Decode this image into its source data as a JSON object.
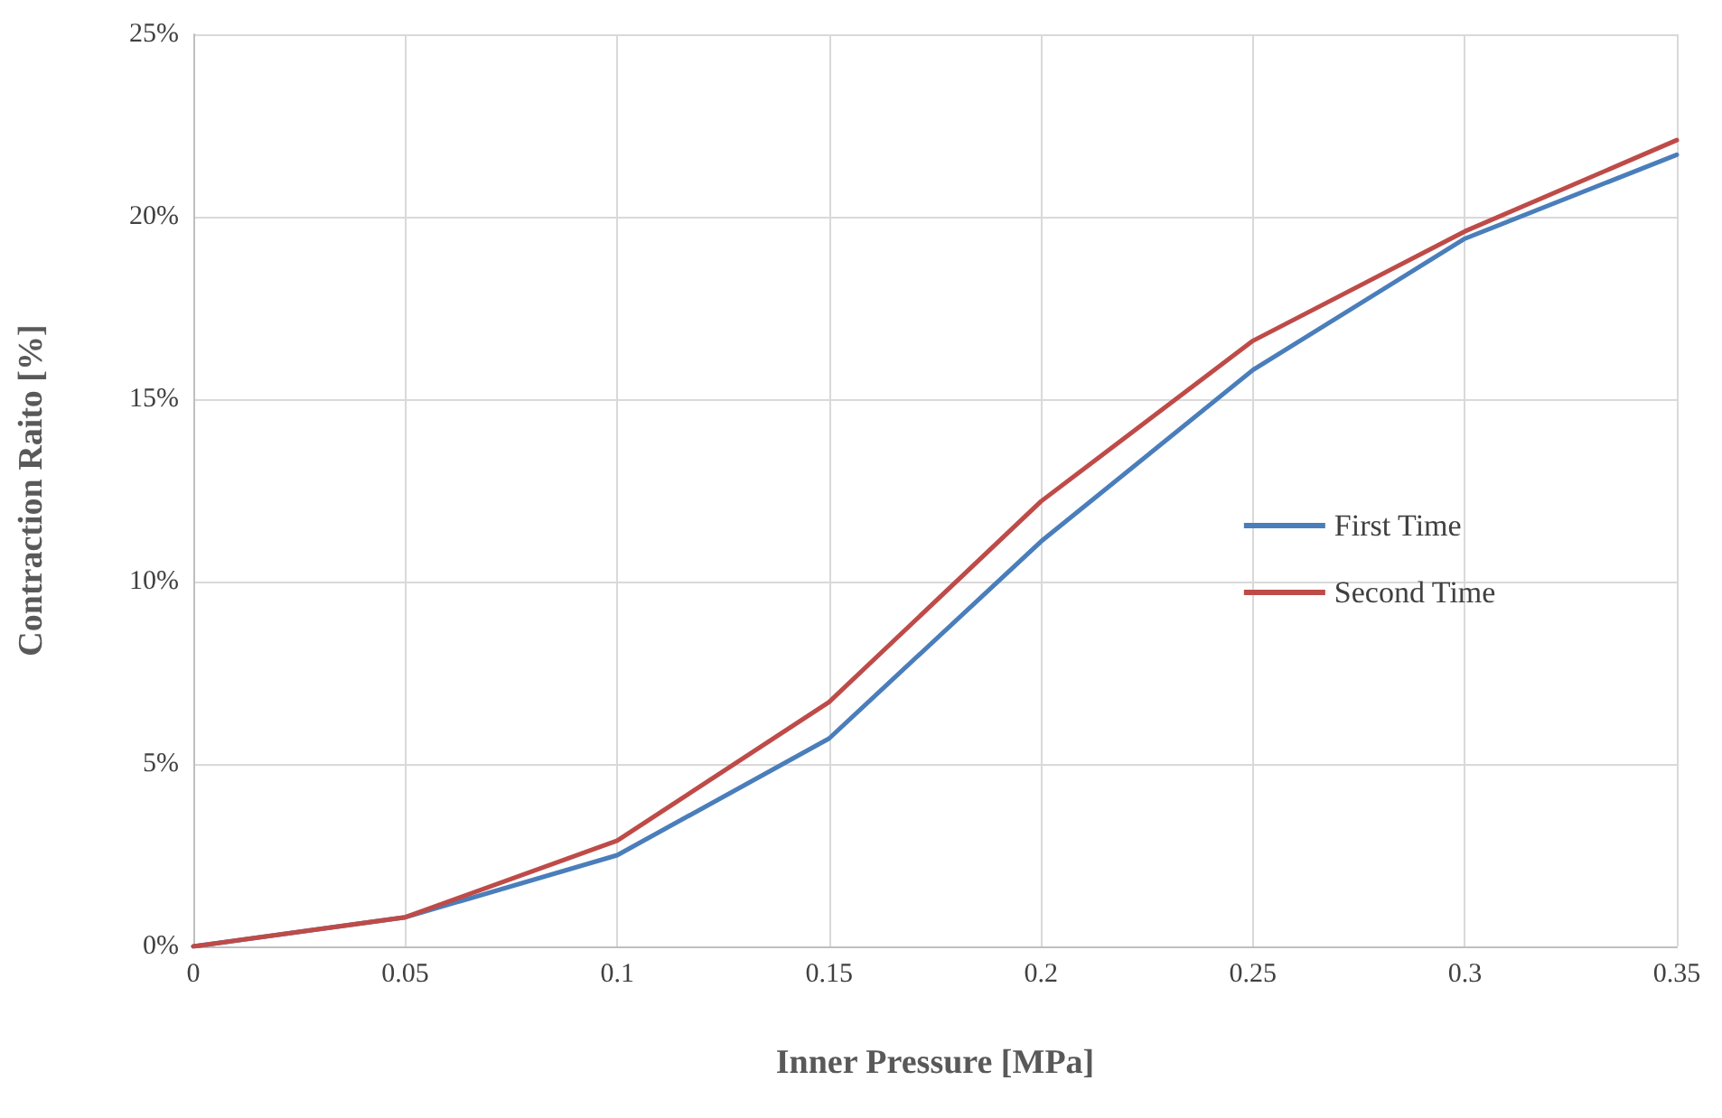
{
  "chart_data": {
    "type": "line",
    "xlabel": "Inner Pressure [MPa]",
    "ylabel": "Contraction Raito [%]",
    "x": [
      0,
      0.05,
      0.1,
      0.15,
      0.2,
      0.25,
      0.3,
      0.35
    ],
    "series": [
      {
        "name": "First Time",
        "color": "#4a7ebb",
        "values": [
          0,
          0.8,
          2.5,
          5.7,
          11.1,
          15.8,
          19.4,
          21.7
        ]
      },
      {
        "name": "Second Time",
        "color": "#be4b48",
        "values": [
          0,
          0.8,
          2.9,
          6.7,
          12.2,
          16.6,
          19.6,
          22.1
        ]
      }
    ],
    "xlim": [
      0,
      0.35
    ],
    "xticks": [
      0,
      0.05,
      0.1,
      0.15,
      0.2,
      0.25,
      0.3,
      0.35
    ],
    "ylim": [
      0,
      25
    ],
    "yticks": [
      {
        "value": 0,
        "label": "0%"
      },
      {
        "value": 5,
        "label": "5%"
      },
      {
        "value": 10,
        "label": "10%"
      },
      {
        "value": 15,
        "label": "15%"
      },
      {
        "value": 20,
        "label": "20%"
      },
      {
        "value": 25,
        "label": "25%"
      }
    ],
    "grid": true,
    "legend": "right",
    "marker": "none",
    "line_style": "solid"
  }
}
